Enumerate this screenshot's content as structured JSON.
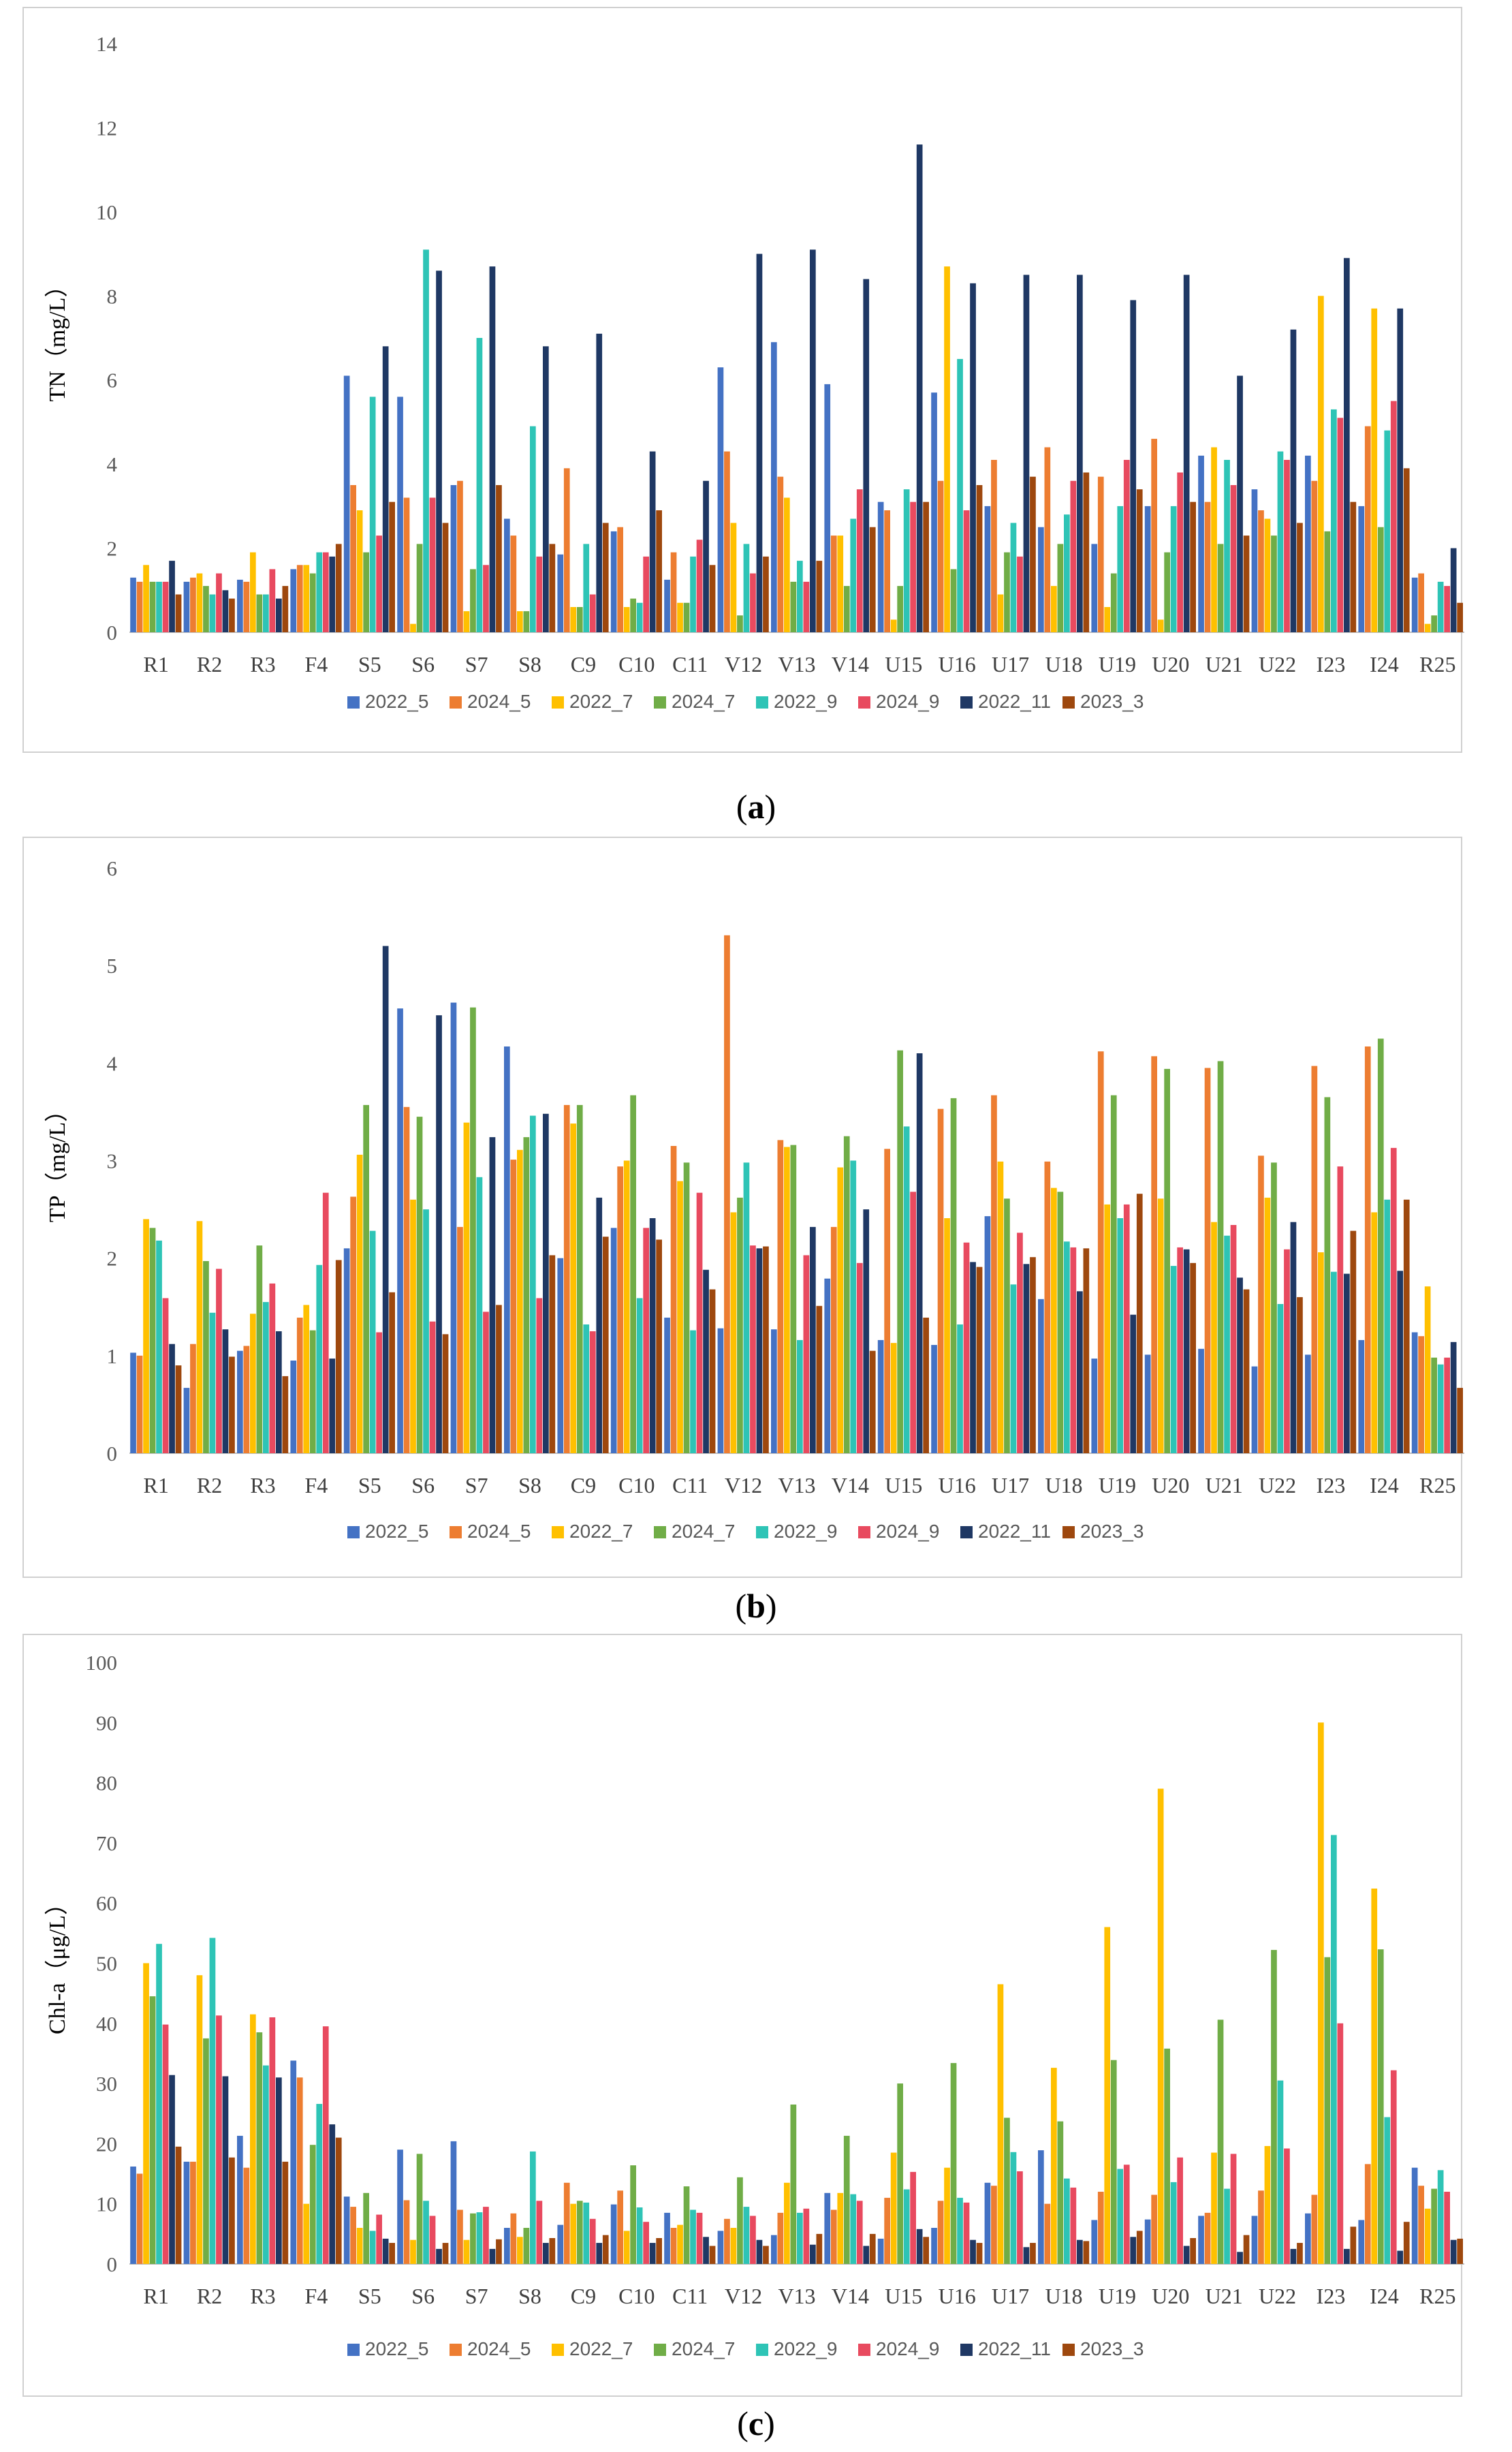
{
  "colors": [
    "#4472C4",
    "#ED7D31",
    "#FFC000",
    "#70AD47",
    "#2EC4B6",
    "#E84A5F",
    "#1F3864",
    "#9E480E"
  ],
  "series_names": [
    "2022_5",
    "2024_5",
    "2022_7",
    "2024_7",
    "2022_9",
    "2024_9",
    "2022_11",
    "2023_3"
  ],
  "categories": [
    "R1",
    "R2",
    "R3",
    "F4",
    "S5",
    "S6",
    "S7",
    "S8",
    "C9",
    "C10",
    "C11",
    "V12",
    "V13",
    "V14",
    "U15",
    "U16",
    "U17",
    "U18",
    "U19",
    "U20",
    "U21",
    "U22",
    "I23",
    "I24",
    "R25"
  ],
  "chart_data": [
    {
      "type": "bar",
      "panel_label": "a",
      "ylabel": "TN（mg/L）",
      "ylim": [
        0,
        14
      ],
      "ticks": [
        0,
        2,
        4,
        6,
        8,
        10,
        12,
        14
      ],
      "grid": false,
      "legend": "bottom",
      "series": [
        {
          "name": "2022_5",
          "values": [
            1.3,
            1.2,
            1.25,
            1.5,
            6.1,
            5.6,
            3.5,
            2.7,
            1.85,
            2.4,
            1.25,
            6.3,
            6.9,
            5.9,
            3.1,
            5.7,
            3.0,
            2.5,
            2.1,
            3.0,
            4.2,
            3.4,
            4.2,
            3.0,
            1.3
          ]
        },
        {
          "name": "2024_5",
          "values": [
            1.2,
            1.3,
            1.2,
            1.6,
            3.5,
            3.2,
            3.6,
            2.3,
            3.9,
            2.5,
            1.9,
            4.3,
            3.7,
            2.3,
            2.9,
            3.6,
            4.1,
            4.4,
            3.7,
            4.6,
            3.1,
            2.9,
            3.6,
            4.9,
            1.4
          ]
        },
        {
          "name": "2022_7",
          "values": [
            1.6,
            1.4,
            1.9,
            1.6,
            2.9,
            0.2,
            0.5,
            0.5,
            0.6,
            0.6,
            0.7,
            2.6,
            3.2,
            2.3,
            0.3,
            8.7,
            0.9,
            1.1,
            0.6,
            0.3,
            4.4,
            2.7,
            8.0,
            7.7,
            0.2
          ]
        },
        {
          "name": "2024_7",
          "values": [
            1.2,
            1.1,
            0.9,
            1.4,
            1.9,
            2.1,
            1.5,
            0.5,
            0.6,
            0.8,
            0.7,
            0.4,
            1.2,
            1.1,
            1.1,
            1.5,
            1.9,
            2.1,
            1.4,
            1.9,
            2.1,
            2.3,
            2.4,
            2.5,
            0.4
          ]
        },
        {
          "name": "2022_9",
          "values": [
            1.2,
            0.9,
            0.9,
            1.9,
            5.6,
            9.1,
            7.0,
            4.9,
            2.1,
            0.7,
            1.8,
            2.1,
            1.7,
            2.7,
            3.4,
            6.5,
            2.6,
            2.8,
            3.0,
            3.0,
            4.1,
            4.3,
            5.3,
            4.8,
            1.2
          ]
        },
        {
          "name": "2024_9",
          "values": [
            1.2,
            1.4,
            1.5,
            1.9,
            2.3,
            3.2,
            1.6,
            1.8,
            0.9,
            1.8,
            2.2,
            1.4,
            1.2,
            3.4,
            3.1,
            2.9,
            1.8,
            3.6,
            4.1,
            3.8,
            3.5,
            4.1,
            5.1,
            5.5,
            1.1
          ]
        },
        {
          "name": "2022_11",
          "values": [
            1.7,
            1.0,
            0.8,
            1.8,
            6.8,
            8.6,
            8.7,
            6.8,
            7.1,
            4.3,
            3.6,
            9.0,
            9.1,
            8.4,
            11.6,
            8.3,
            8.5,
            8.5,
            7.9,
            8.5,
            6.1,
            7.2,
            8.9,
            7.7,
            2.0
          ]
        },
        {
          "name": "2023_3",
          "values": [
            0.9,
            0.8,
            1.1,
            2.1,
            3.1,
            2.6,
            3.5,
            2.1,
            2.6,
            2.9,
            1.6,
            1.8,
            1.7,
            2.5,
            3.1,
            3.5,
            3.7,
            3.8,
            3.4,
            3.1,
            2.3,
            2.6,
            3.1,
            3.9,
            0.7
          ]
        }
      ]
    },
    {
      "type": "bar",
      "panel_label": "b",
      "ylabel": "TP（mg/L）",
      "ylim": [
        0,
        6
      ],
      "ticks": [
        0,
        1,
        2,
        3,
        4,
        5,
        6
      ],
      "grid": false,
      "legend": "bottom",
      "series": [
        {
          "name": "2022_5",
          "values": [
            1.03,
            0.67,
            1.05,
            0.95,
            2.1,
            4.56,
            4.62,
            4.17,
            2.0,
            2.31,
            1.39,
            1.28,
            1.27,
            1.79,
            1.16,
            1.11,
            2.43,
            1.58,
            0.97,
            1.01,
            1.07,
            0.89,
            1.01,
            1.16,
            1.24
          ]
        },
        {
          "name": "2024_5",
          "values": [
            1.0,
            1.12,
            1.1,
            1.39,
            2.63,
            3.55,
            2.32,
            3.01,
            3.57,
            2.94,
            3.15,
            5.31,
            3.21,
            2.32,
            3.12,
            3.53,
            3.67,
            2.99,
            4.12,
            4.07,
            3.95,
            3.05,
            3.97,
            4.17,
            1.2
          ]
        },
        {
          "name": "2022_7",
          "values": [
            2.4,
            2.38,
            1.43,
            1.52,
            3.06,
            2.6,
            3.39,
            3.11,
            3.38,
            3.0,
            2.79,
            2.47,
            3.14,
            2.93,
            1.13,
            2.41,
            2.99,
            2.72,
            2.55,
            2.61,
            2.37,
            2.62,
            2.06,
            2.47,
            1.71
          ]
        },
        {
          "name": "2024_7",
          "values": [
            2.31,
            1.97,
            2.13,
            1.26,
            3.57,
            3.45,
            4.57,
            3.24,
            3.57,
            3.67,
            2.98,
            2.62,
            3.16,
            3.25,
            4.13,
            3.64,
            2.61,
            2.68,
            3.67,
            3.94,
            4.02,
            2.98,
            3.65,
            4.25,
            0.98
          ]
        },
        {
          "name": "2022_9",
          "values": [
            2.18,
            1.44,
            1.55,
            1.93,
            2.28,
            2.5,
            2.83,
            3.46,
            1.32,
            1.59,
            1.26,
            2.98,
            1.16,
            3.0,
            3.35,
            1.32,
            1.73,
            2.17,
            2.41,
            1.92,
            2.23,
            1.53,
            1.86,
            2.6,
            0.91
          ]
        },
        {
          "name": "2024_9",
          "values": [
            1.59,
            1.89,
            1.74,
            2.67,
            1.24,
            1.35,
            1.45,
            1.59,
            1.25,
            2.31,
            2.67,
            2.13,
            2.03,
            1.95,
            2.68,
            2.16,
            2.26,
            2.11,
            2.55,
            2.11,
            2.34,
            2.09,
            2.94,
            3.13,
            0.98
          ]
        },
        {
          "name": "2022_11",
          "values": [
            1.12,
            1.27,
            1.25,
            0.97,
            5.2,
            4.49,
            3.24,
            3.48,
            2.62,
            2.41,
            1.88,
            2.1,
            2.32,
            2.5,
            4.1,
            1.96,
            1.94,
            1.66,
            1.42,
            2.09,
            1.8,
            2.37,
            1.84,
            1.87,
            1.14
          ]
        },
        {
          "name": "2023_3",
          "values": [
            0.9,
            0.99,
            0.79,
            1.98,
            1.65,
            1.22,
            1.52,
            2.03,
            2.22,
            2.19,
            1.68,
            2.12,
            1.51,
            1.05,
            1.39,
            1.91,
            2.01,
            2.1,
            2.66,
            1.95,
            1.68,
            1.6,
            2.28,
            2.6,
            0.67
          ]
        }
      ]
    },
    {
      "type": "bar",
      "panel_label": "c",
      "ylabel": "Chl-a（μg/L）",
      "ylim": [
        0,
        100
      ],
      "ticks": [
        0,
        10,
        20,
        30,
        40,
        50,
        60,
        70,
        80,
        90,
        100
      ],
      "grid": false,
      "legend": "bottom",
      "series": [
        {
          "name": "2022_5",
          "values": [
            16.2,
            17.0,
            21.3,
            33.8,
            11.2,
            19.0,
            20.4,
            6.0,
            6.5,
            9.9,
            8.5,
            5.5,
            4.8,
            11.8,
            4.2,
            6.0,
            13.5,
            18.9,
            7.3,
            7.4,
            8.0,
            8.0,
            8.4,
            7.3,
            16.0
          ]
        },
        {
          "name": "2024_5",
          "values": [
            15.0,
            17.0,
            16.0,
            31.0,
            9.5,
            10.6,
            9.0,
            8.4,
            13.5,
            12.2,
            6.0,
            7.5,
            8.5,
            9.0,
            11.0,
            10.5,
            13.0,
            10.0,
            12.0,
            11.5,
            8.5,
            12.2,
            11.5,
            16.6,
            13.0
          ]
        },
        {
          "name": "2022_7",
          "values": [
            50.0,
            48.0,
            41.5,
            10.0,
            6.0,
            4.0,
            4.0,
            4.5,
            10.0,
            5.5,
            6.5,
            6.0,
            13.5,
            11.8,
            18.5,
            16.0,
            46.5,
            32.6,
            56.0,
            79.0,
            18.5,
            19.6,
            90.0,
            62.4,
            9.2
          ]
        },
        {
          "name": "2024_7",
          "values": [
            44.5,
            37.5,
            38.5,
            19.8,
            11.8,
            18.3,
            8.4,
            6.0,
            10.5,
            16.4,
            12.9,
            14.4,
            26.5,
            21.3,
            30.0,
            33.4,
            24.3,
            23.7,
            33.9,
            35.8,
            40.6,
            52.2,
            51.0,
            52.3,
            12.5
          ]
        },
        {
          "name": "2022_9",
          "values": [
            53.2,
            54.2,
            33.0,
            26.6,
            5.5,
            10.5,
            8.6,
            18.7,
            10.2,
            9.4,
            9.0,
            9.5,
            8.5,
            11.6,
            12.4,
            11.0,
            18.6,
            14.2,
            15.8,
            13.6,
            12.5,
            30.5,
            71.3,
            24.4,
            15.6
          ]
        },
        {
          "name": "2024_9",
          "values": [
            39.8,
            41.3,
            41.0,
            39.5,
            8.2,
            8.0,
            9.5,
            10.5,
            7.5,
            7.0,
            8.5,
            8.0,
            9.2,
            10.5,
            15.3,
            10.2,
            15.4,
            12.7,
            16.5,
            17.7,
            18.3,
            19.2,
            40.0,
            32.2,
            12.0
          ]
        },
        {
          "name": "2022_11",
          "values": [
            31.4,
            31.2,
            31.0,
            23.2,
            4.2,
            2.5,
            2.5,
            3.5,
            3.5,
            3.5,
            4.5,
            4.0,
            3.2,
            3.0,
            5.8,
            4.0,
            2.8,
            4.0,
            4.5,
            3.0,
            2.0,
            2.5,
            2.5,
            2.2,
            4.0
          ]
        },
        {
          "name": "2023_3",
          "values": [
            19.5,
            17.7,
            17.0,
            21.0,
            3.5,
            3.5,
            4.1,
            4.3,
            4.8,
            4.3,
            3.0,
            3.0,
            5.0,
            5.0,
            4.5,
            3.5,
            3.5,
            3.8,
            5.5,
            4.3,
            4.8,
            3.5,
            6.2,
            7.0,
            4.2
          ]
        }
      ]
    }
  ]
}
